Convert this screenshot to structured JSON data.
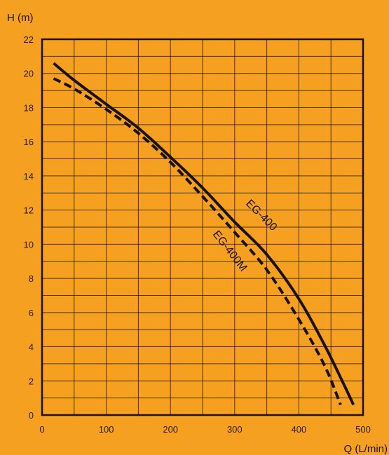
{
  "chart_data": {
    "type": "line",
    "xlabel": "Q (L/min)",
    "ylabel": "H (m)",
    "xlim": [
      0,
      500
    ],
    "ylim": [
      0,
      22
    ],
    "xticks": [
      0,
      100,
      200,
      300,
      400,
      500
    ],
    "yticks": [
      0,
      2,
      4,
      6,
      8,
      10,
      12,
      14,
      16,
      18,
      20,
      22
    ],
    "grid": true,
    "colors": {
      "background": "#f5a020",
      "line": "#1a1206",
      "frame": "#1a1206"
    },
    "series": [
      {
        "name": "EG-400",
        "style": "solid",
        "x": [
          18,
          50,
          100,
          150,
          200,
          250,
          300,
          350,
          400,
          440,
          470,
          485
        ],
        "y": [
          20.6,
          19.6,
          18.2,
          16.8,
          15.1,
          13.3,
          11.3,
          9.4,
          6.8,
          4.1,
          1.8,
          0.6
        ]
      },
      {
        "name": "EG-400M",
        "style": "dashed",
        "x": [
          18,
          50,
          100,
          150,
          200,
          250,
          300,
          350,
          400,
          440,
          465
        ],
        "y": [
          19.7,
          19.1,
          17.9,
          16.5,
          14.8,
          12.8,
          10.7,
          8.5,
          5.6,
          2.9,
          0.6
        ]
      }
    ]
  }
}
